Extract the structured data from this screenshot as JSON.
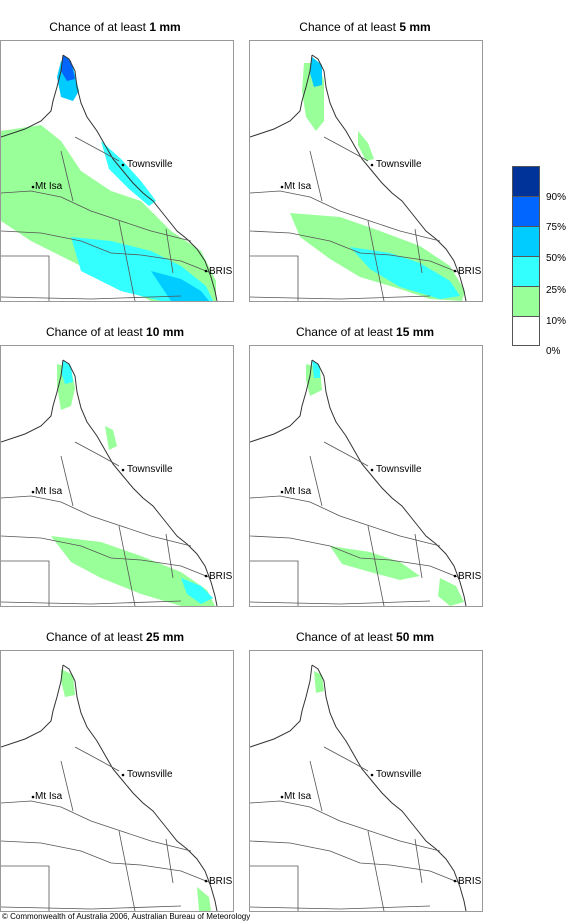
{
  "panels": [
    {
      "prefix": "Chance of at least",
      "amount": "1 mm"
    },
    {
      "prefix": "Chance of at least",
      "amount": "5 mm"
    },
    {
      "prefix": "Chance of at least",
      "amount": "10 mm"
    },
    {
      "prefix": "Chance of at least",
      "amount": "15 mm"
    },
    {
      "prefix": "Chance of at least",
      "amount": "25 mm"
    },
    {
      "prefix": "Chance of at least",
      "amount": "50 mm"
    }
  ],
  "places": {
    "townsville": "Townsville",
    "mt_isa": "Mt Isa",
    "brisbane": "BRIS"
  },
  "legend": {
    "labels": [
      "90%",
      "75%",
      "50%",
      "25%",
      "10%",
      "0%"
    ],
    "colors": [
      "#003399",
      "#0066ff",
      "#00ccff",
      "#33ffff",
      "#99ff99",
      "#ffffff"
    ]
  },
  "copyright": "© Commonwealth of Australia 2006, Australian Bureau of Meteorology"
}
